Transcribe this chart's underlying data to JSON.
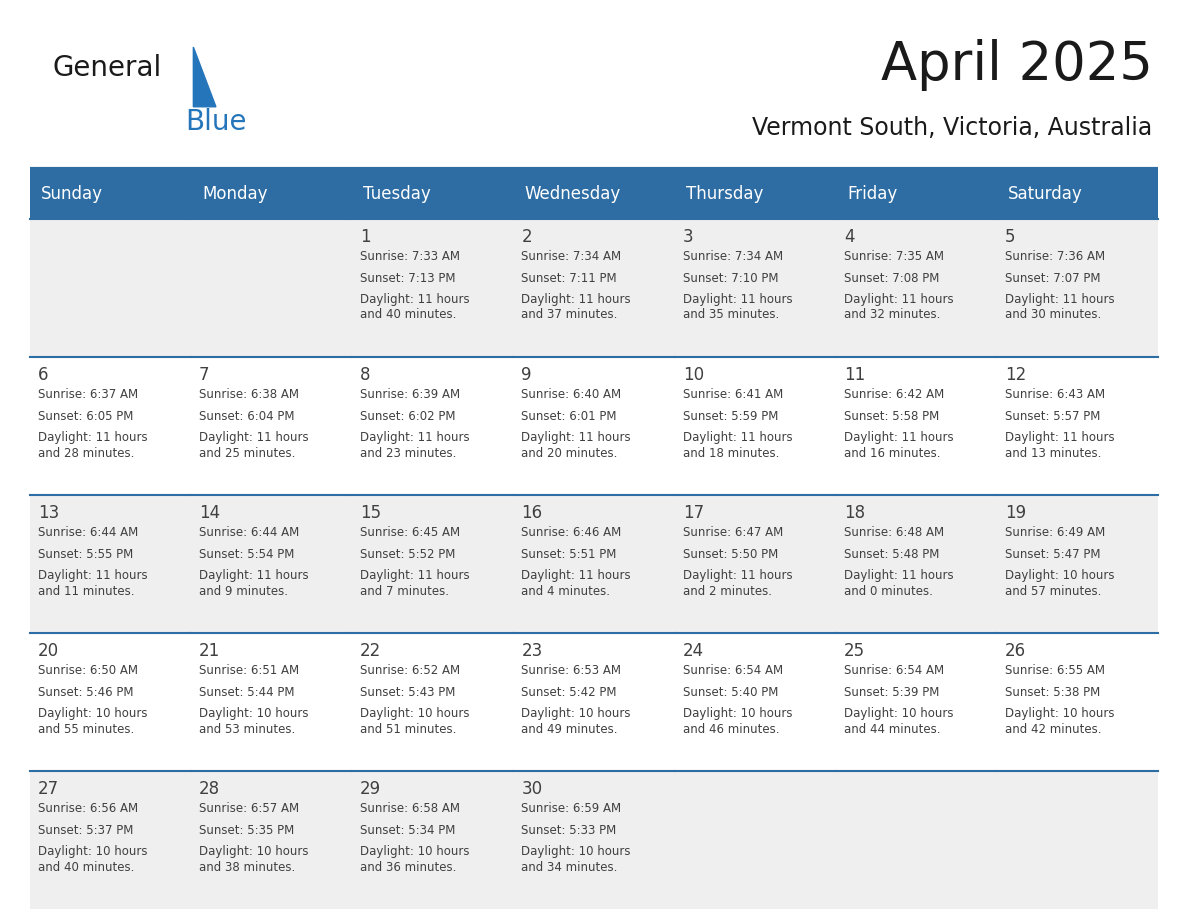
{
  "title": "April 2025",
  "subtitle": "Vermont South, Victoria, Australia",
  "header_bg": "#2E6DA4",
  "header_text_color": "#FFFFFF",
  "cell_bg_odd": "#EFEFEF",
  "cell_bg_even": "#FFFFFF",
  "text_color": "#404040",
  "border_color": "#2E6DA4",
  "logo_text_color": "#1a1a1a",
  "logo_blue_color": "#2575BB",
  "days_of_week": [
    "Sunday",
    "Monday",
    "Tuesday",
    "Wednesday",
    "Thursday",
    "Friday",
    "Saturday"
  ],
  "calendar": [
    [
      {
        "day": "",
        "sunrise": "",
        "sunset": "",
        "daylight": ""
      },
      {
        "day": "",
        "sunrise": "",
        "sunset": "",
        "daylight": ""
      },
      {
        "day": "1",
        "sunrise": "Sunrise: 7:33 AM",
        "sunset": "Sunset: 7:13 PM",
        "daylight": "Daylight: 11 hours\nand 40 minutes."
      },
      {
        "day": "2",
        "sunrise": "Sunrise: 7:34 AM",
        "sunset": "Sunset: 7:11 PM",
        "daylight": "Daylight: 11 hours\nand 37 minutes."
      },
      {
        "day": "3",
        "sunrise": "Sunrise: 7:34 AM",
        "sunset": "Sunset: 7:10 PM",
        "daylight": "Daylight: 11 hours\nand 35 minutes."
      },
      {
        "day": "4",
        "sunrise": "Sunrise: 7:35 AM",
        "sunset": "Sunset: 7:08 PM",
        "daylight": "Daylight: 11 hours\nand 32 minutes."
      },
      {
        "day": "5",
        "sunrise": "Sunrise: 7:36 AM",
        "sunset": "Sunset: 7:07 PM",
        "daylight": "Daylight: 11 hours\nand 30 minutes."
      }
    ],
    [
      {
        "day": "6",
        "sunrise": "Sunrise: 6:37 AM",
        "sunset": "Sunset: 6:05 PM",
        "daylight": "Daylight: 11 hours\nand 28 minutes."
      },
      {
        "day": "7",
        "sunrise": "Sunrise: 6:38 AM",
        "sunset": "Sunset: 6:04 PM",
        "daylight": "Daylight: 11 hours\nand 25 minutes."
      },
      {
        "day": "8",
        "sunrise": "Sunrise: 6:39 AM",
        "sunset": "Sunset: 6:02 PM",
        "daylight": "Daylight: 11 hours\nand 23 minutes."
      },
      {
        "day": "9",
        "sunrise": "Sunrise: 6:40 AM",
        "sunset": "Sunset: 6:01 PM",
        "daylight": "Daylight: 11 hours\nand 20 minutes."
      },
      {
        "day": "10",
        "sunrise": "Sunrise: 6:41 AM",
        "sunset": "Sunset: 5:59 PM",
        "daylight": "Daylight: 11 hours\nand 18 minutes."
      },
      {
        "day": "11",
        "sunrise": "Sunrise: 6:42 AM",
        "sunset": "Sunset: 5:58 PM",
        "daylight": "Daylight: 11 hours\nand 16 minutes."
      },
      {
        "day": "12",
        "sunrise": "Sunrise: 6:43 AM",
        "sunset": "Sunset: 5:57 PM",
        "daylight": "Daylight: 11 hours\nand 13 minutes."
      }
    ],
    [
      {
        "day": "13",
        "sunrise": "Sunrise: 6:44 AM",
        "sunset": "Sunset: 5:55 PM",
        "daylight": "Daylight: 11 hours\nand 11 minutes."
      },
      {
        "day": "14",
        "sunrise": "Sunrise: 6:44 AM",
        "sunset": "Sunset: 5:54 PM",
        "daylight": "Daylight: 11 hours\nand 9 minutes."
      },
      {
        "day": "15",
        "sunrise": "Sunrise: 6:45 AM",
        "sunset": "Sunset: 5:52 PM",
        "daylight": "Daylight: 11 hours\nand 7 minutes."
      },
      {
        "day": "16",
        "sunrise": "Sunrise: 6:46 AM",
        "sunset": "Sunset: 5:51 PM",
        "daylight": "Daylight: 11 hours\nand 4 minutes."
      },
      {
        "day": "17",
        "sunrise": "Sunrise: 6:47 AM",
        "sunset": "Sunset: 5:50 PM",
        "daylight": "Daylight: 11 hours\nand 2 minutes."
      },
      {
        "day": "18",
        "sunrise": "Sunrise: 6:48 AM",
        "sunset": "Sunset: 5:48 PM",
        "daylight": "Daylight: 11 hours\nand 0 minutes."
      },
      {
        "day": "19",
        "sunrise": "Sunrise: 6:49 AM",
        "sunset": "Sunset: 5:47 PM",
        "daylight": "Daylight: 10 hours\nand 57 minutes."
      }
    ],
    [
      {
        "day": "20",
        "sunrise": "Sunrise: 6:50 AM",
        "sunset": "Sunset: 5:46 PM",
        "daylight": "Daylight: 10 hours\nand 55 minutes."
      },
      {
        "day": "21",
        "sunrise": "Sunrise: 6:51 AM",
        "sunset": "Sunset: 5:44 PM",
        "daylight": "Daylight: 10 hours\nand 53 minutes."
      },
      {
        "day": "22",
        "sunrise": "Sunrise: 6:52 AM",
        "sunset": "Sunset: 5:43 PM",
        "daylight": "Daylight: 10 hours\nand 51 minutes."
      },
      {
        "day": "23",
        "sunrise": "Sunrise: 6:53 AM",
        "sunset": "Sunset: 5:42 PM",
        "daylight": "Daylight: 10 hours\nand 49 minutes."
      },
      {
        "day": "24",
        "sunrise": "Sunrise: 6:54 AM",
        "sunset": "Sunset: 5:40 PM",
        "daylight": "Daylight: 10 hours\nand 46 minutes."
      },
      {
        "day": "25",
        "sunrise": "Sunrise: 6:54 AM",
        "sunset": "Sunset: 5:39 PM",
        "daylight": "Daylight: 10 hours\nand 44 minutes."
      },
      {
        "day": "26",
        "sunrise": "Sunrise: 6:55 AM",
        "sunset": "Sunset: 5:38 PM",
        "daylight": "Daylight: 10 hours\nand 42 minutes."
      }
    ],
    [
      {
        "day": "27",
        "sunrise": "Sunrise: 6:56 AM",
        "sunset": "Sunset: 5:37 PM",
        "daylight": "Daylight: 10 hours\nand 40 minutes."
      },
      {
        "day": "28",
        "sunrise": "Sunrise: 6:57 AM",
        "sunset": "Sunset: 5:35 PM",
        "daylight": "Daylight: 10 hours\nand 38 minutes."
      },
      {
        "day": "29",
        "sunrise": "Sunrise: 6:58 AM",
        "sunset": "Sunset: 5:34 PM",
        "daylight": "Daylight: 10 hours\nand 36 minutes."
      },
      {
        "day": "30",
        "sunrise": "Sunrise: 6:59 AM",
        "sunset": "Sunset: 5:33 PM",
        "daylight": "Daylight: 10 hours\nand 34 minutes."
      },
      {
        "day": "",
        "sunrise": "",
        "sunset": "",
        "daylight": ""
      },
      {
        "day": "",
        "sunrise": "",
        "sunset": "",
        "daylight": ""
      },
      {
        "day": "",
        "sunrise": "",
        "sunset": "",
        "daylight": ""
      }
    ]
  ]
}
